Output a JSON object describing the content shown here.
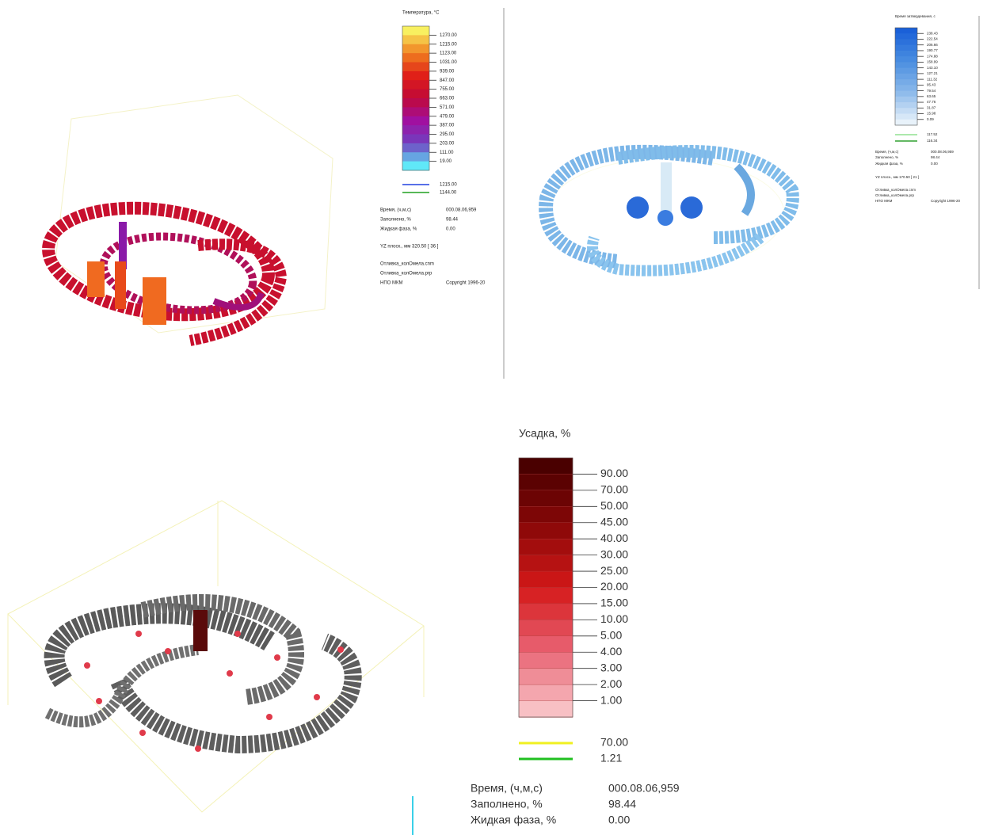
{
  "panels": [
    {
      "legend": {
        "title": "Температура, °С",
        "labels": [
          "1270.00",
          "1215.00",
          "1123.00",
          "1031.00",
          "939.00",
          "847.00",
          "755.00",
          "663.00",
          "571.00",
          "479.00",
          "387.00",
          "295.00",
          "203.00",
          "111.00",
          "19.00"
        ],
        "lines": [
          "1215.00",
          "1144.00"
        ]
      },
      "info": [
        {
          "key": "Время, (ч,м,с)",
          "value": "000.08.06,959"
        },
        {
          "key": "Заполнено, %",
          "value": "98.44"
        },
        {
          "key": "Жидкая фаза, %",
          "value": "0.00"
        }
      ],
      "plane": "YZ плоск., мм  320.50  [ 36 ]",
      "files": [
        "Отливка_колОмела.cnm",
        "Отливка_колОмела.prp"
      ],
      "company": "НПО МКМ",
      "copyright": "Copyright 1996-20"
    },
    {
      "legend": {
        "title": "Время затвердевания, с",
        "labels": [
          "238.43",
          "222.54",
          "206.66",
          "190.77",
          "174.88",
          "158.99",
          "143.10",
          "127.21",
          "111.32",
          "95.43",
          "79.54",
          "63.65",
          "47.76",
          "31.87",
          "15.98",
          "0.09"
        ],
        "lines": [
          "117.52",
          "116.34"
        ]
      },
      "info": [
        {
          "key": "Время, (ч,м,с)",
          "value": "000.08.06,959"
        },
        {
          "key": "Заполнено, %",
          "value": "98.44"
        },
        {
          "key": "Жидкая фаза, %",
          "value": "0.00"
        }
      ],
      "plane": "YZ плоск., мм  170.50  [ 21 ]",
      "files": [
        "Отливка_колОмела.cnm",
        "Отливка_колОмела.prp"
      ],
      "company": "НПО МКМ",
      "copyright": "Copyright 1996-20"
    },
    {
      "legend": {
        "title": "Усадка, %",
        "labels": [
          "90.00",
          "70.00",
          "50.00",
          "45.00",
          "40.00",
          "30.00",
          "25.00",
          "20.00",
          "15.00",
          "10.00",
          "5.00",
          "4.00",
          "3.00",
          "2.00",
          "1.00"
        ],
        "lines": [
          "70.00",
          "1.21"
        ]
      },
      "info": [
        {
          "key": "Время, (ч,м,с)",
          "value": "000.08.06,959"
        },
        {
          "key": "Заполнено, %",
          "value": "98.44"
        },
        {
          "key": "Жидкая фаза, %",
          "value": "0.00"
        }
      ]
    }
  ]
}
